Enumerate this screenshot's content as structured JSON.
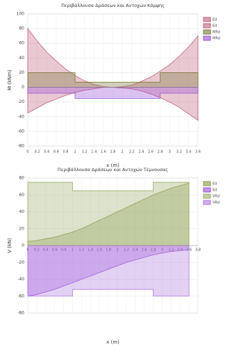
{
  "chart_data": [
    {
      "type": "area",
      "title": "Περιβάλλουσα Δράσεων και Αντοχών Κάμψης",
      "y_label": "M (kNm)",
      "x_label": "x (m)",
      "xlim": [
        0,
        3.6
      ],
      "xticks": [
        0,
        0.2,
        0.4,
        0.6,
        0.8,
        1,
        1.2,
        1.4,
        1.6,
        1.8,
        2,
        2.2,
        2.4,
        2.6,
        2.8,
        3,
        3.2,
        3.4,
        3.6
      ],
      "ylim": [
        -80,
        100
      ],
      "yticks": [
        -80,
        -60,
        -40,
        -20,
        0,
        20,
        40,
        60,
        80,
        100
      ],
      "grid": true,
      "series": [
        {
          "name": "Ed",
          "color": "#c0607a",
          "x": [
            0,
            0.2,
            0.4,
            0.6,
            0.8,
            1,
            1.2,
            1.4,
            1.6,
            1.8,
            2,
            2.2,
            2.4,
            2.6,
            2.8,
            3,
            3.2,
            3.4,
            3.6
          ],
          "values": [
            80,
            63,
            48,
            36,
            25,
            16,
            9,
            4,
            1,
            0,
            1,
            3,
            8,
            14,
            22,
            31,
            42,
            55,
            70
          ]
        },
        {
          "name": "Ed",
          "color": "#c0607a",
          "x": [
            0,
            0.2,
            0.4,
            0.6,
            0.8,
            1,
            1.2,
            1.4,
            1.6,
            1.8,
            2,
            2.2,
            2.4,
            2.6,
            2.8,
            3,
            3.2,
            3.4,
            3.6
          ],
          "values": [
            -35,
            -28,
            -21,
            -16,
            -11,
            -7,
            -4,
            -2,
            0,
            0,
            -1,
            -2,
            -5,
            -9,
            -14,
            -20,
            -27,
            -36,
            -45
          ]
        },
        {
          "name": "MRd",
          "color": "#7a7a3a",
          "x": [
            0,
            1,
            1,
            2.8,
            2.8,
            3.6
          ],
          "values": [
            20,
            20,
            7,
            7,
            20,
            20
          ]
        },
        {
          "name": "MRd",
          "color": "#9b4fd6",
          "x": [
            0,
            1,
            1,
            2.8,
            2.8,
            3.6
          ],
          "values": [
            -8,
            -8,
            -15,
            -15,
            -8,
            -8
          ]
        }
      ]
    },
    {
      "type": "area",
      "title": "Περιβάλλουσα Δράσεων και Αντοχών Τέμνουσας",
      "y_label": "V (kN)",
      "x_label": "x (m)",
      "xlim": [
        0,
        3.8
      ],
      "xticks": [
        0,
        0.2,
        0.4,
        0.6,
        0.8,
        1,
        1.2,
        1.4,
        1.6,
        1.8,
        2,
        2.2,
        2.4,
        2.6,
        2.8,
        3,
        3.2,
        3.4,
        3.6,
        3.8
      ],
      "ylim": [
        -80,
        80
      ],
      "yticks": [
        -80,
        -60,
        -40,
        -20,
        0,
        20,
        40,
        60,
        80
      ],
      "grid": true,
      "series": [
        {
          "name": "Ed",
          "color": "#8a9a4a",
          "x": [
            0,
            0.2,
            0.4,
            0.6,
            0.8,
            1,
            1.2,
            1.4,
            1.6,
            1.8,
            2,
            2.2,
            2.4,
            2.6,
            2.8,
            3,
            3.2,
            3.4,
            3.6
          ],
          "values": [
            5,
            6,
            8,
            10,
            13,
            16,
            20,
            25,
            30,
            35,
            40,
            45,
            50,
            55,
            60,
            64,
            68,
            71,
            74
          ]
        },
        {
          "name": "Ed",
          "color": "#9b4fd6",
          "x": [
            0,
            0.2,
            0.4,
            0.6,
            0.8,
            1,
            1.2,
            1.4,
            1.6,
            1.8,
            2,
            2.2,
            2.4,
            2.6,
            2.8,
            3,
            3.2,
            3.4,
            3.6
          ],
          "values": [
            -60,
            -58,
            -55,
            -52,
            -48,
            -44,
            -40,
            -36,
            -32,
            -28,
            -24,
            -20,
            -17,
            -14,
            -11,
            -9,
            -7,
            -6,
            -5
          ]
        },
        {
          "name": "VRd",
          "color": "#9aad6a",
          "x": [
            0,
            1,
            1,
            2.8,
            2.8,
            3.6
          ],
          "values": [
            75,
            75,
            65,
            65,
            75,
            75
          ]
        },
        {
          "name": "VRd",
          "color": "#b07ae0",
          "x": [
            0,
            1,
            1,
            2.8,
            2.8,
            3.6
          ],
          "values": [
            -60,
            -60,
            -52,
            -52,
            -60,
            -60
          ]
        }
      ]
    }
  ]
}
